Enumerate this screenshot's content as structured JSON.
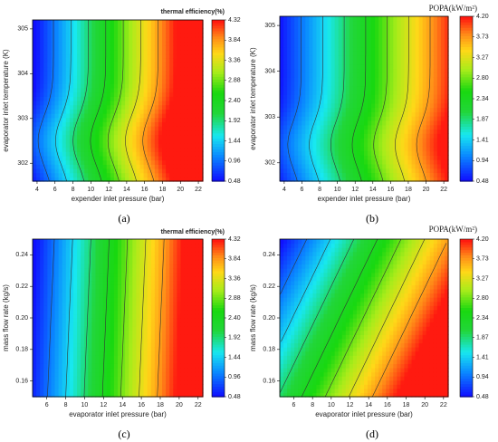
{
  "chart_data": [
    {
      "type": "heatmap",
      "panel_label": "(a)",
      "colorbar_title": "thermal efficiency(%)",
      "xlabel": "expender inlet pressure (bar)",
      "ylabel": "evaporator inlet temperature (K)",
      "xlim": [
        3.5,
        22.5
      ],
      "ylim": [
        301.6,
        305.2
      ],
      "x_ticks": [
        "4",
        "6",
        "8",
        "10",
        "12",
        "14",
        "16",
        "18",
        "20",
        "22"
      ],
      "y_ticks": [
        "302",
        "303",
        "304",
        "305"
      ],
      "color_levels": [
        "0.48",
        "0.96",
        "1.44",
        "1.92",
        "2.40",
        "2.88",
        "3.36",
        "3.84",
        "4.32"
      ],
      "vmin": 0.48,
      "vmax": 4.32
    },
    {
      "type": "heatmap",
      "panel_label": "(b)",
      "colorbar_title": "POPA(kW/m²)",
      "xlabel": "expender inlet pressure (bar)",
      "ylabel": "evaporator inlet temperature (K)",
      "xlim": [
        3.5,
        22.5
      ],
      "ylim": [
        301.6,
        305.2
      ],
      "x_ticks": [
        "4",
        "6",
        "8",
        "10",
        "12",
        "14",
        "16",
        "18",
        "20",
        "22"
      ],
      "y_ticks": [
        "302",
        "303",
        "304",
        "305"
      ],
      "color_levels": [
        "0.48",
        "0.94",
        "1.41",
        "1.87",
        "2.34",
        "2.80",
        "3.27",
        "3.73",
        "4.20"
      ],
      "vmin": 0.48,
      "vmax": 4.2
    },
    {
      "type": "heatmap",
      "panel_label": "(c)",
      "colorbar_title": "thermal efficiency(%)",
      "xlabel": "evaporator inlet pressure (bar)",
      "ylabel": "mass flow rate (kg/s)",
      "xlim": [
        4.5,
        22.5
      ],
      "ylim": [
        0.15,
        0.25
      ],
      "x_ticks": [
        "6",
        "8",
        "10",
        "12",
        "14",
        "16",
        "18",
        "20",
        "22"
      ],
      "y_ticks": [
        "0.16",
        "0.18",
        "0.20",
        "0.22",
        "0.24"
      ],
      "color_levels": [
        "0.48",
        "0.96",
        "1.44",
        "1.92",
        "2.40",
        "2.88",
        "3.36",
        "3.84",
        "4.32"
      ],
      "vmin": 0.48,
      "vmax": 4.32
    },
    {
      "type": "heatmap",
      "panel_label": "(d)",
      "colorbar_title": "POPA(kW/m²)",
      "xlabel": "evaporator inlet pressure (bar)",
      "ylabel": "mass flow rate (kg/s)",
      "xlim": [
        4.5,
        22.5
      ],
      "ylim": [
        0.15,
        0.25
      ],
      "x_ticks": [
        "6",
        "8",
        "10",
        "12",
        "14",
        "16",
        "18",
        "20",
        "22"
      ],
      "y_ticks": [
        "0.16",
        "0.18",
        "0.20",
        "0.22",
        "0.24"
      ],
      "color_levels": [
        "0.48",
        "0.94",
        "1.41",
        "1.87",
        "2.34",
        "2.80",
        "3.27",
        "3.73",
        "4.20"
      ],
      "vmin": 0.48,
      "vmax": 4.2
    }
  ]
}
